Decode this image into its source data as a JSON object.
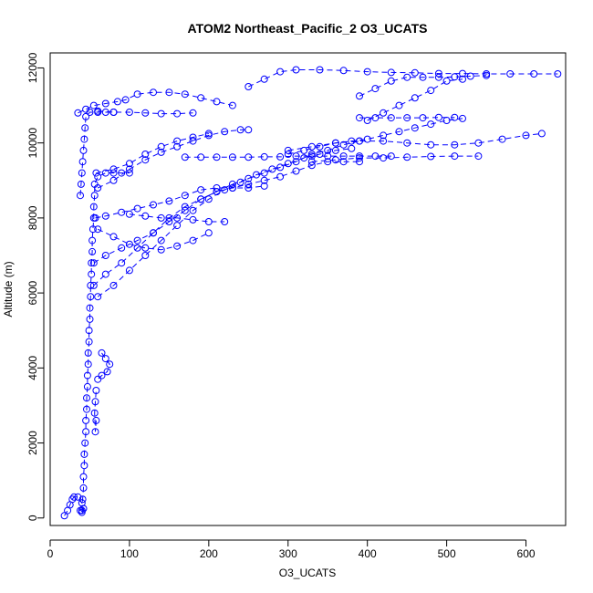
{
  "chart_data": {
    "type": "scatter",
    "title": "ATOM2 Northeast_Pacific_2 O3_UCATS",
    "xlabel": "O3_UCATS",
    "ylabel": "Altitude (m)",
    "xlim": [
      0,
      650
    ],
    "ylim": [
      -200,
      12400
    ],
    "xticks": [
      "0",
      "100",
      "200",
      "300",
      "400",
      "500",
      "600"
    ],
    "yticks": [
      "0",
      "2000",
      "4000",
      "6000",
      "8000",
      "10000",
      "12000"
    ],
    "marker": "open-circle",
    "line_style": "dashed",
    "grid": false,
    "color": "#0000ff",
    "segments": [
      [
        [
          18,
          60
        ],
        [
          22,
          200
        ],
        [
          25,
          350
        ],
        [
          28,
          500
        ],
        [
          30,
          560
        ],
        [
          35,
          560
        ],
        [
          40,
          400
        ],
        [
          42,
          250
        ],
        [
          40,
          150
        ],
        [
          38,
          200
        ]
      ],
      [
        [
          40,
          200
        ],
        [
          41,
          500
        ],
        [
          42,
          800
        ],
        [
          42,
          1100
        ],
        [
          43,
          1400
        ],
        [
          43,
          1700
        ],
        [
          44,
          2000
        ],
        [
          45,
          2300
        ],
        [
          45,
          2600
        ],
        [
          46,
          2900
        ],
        [
          46,
          3200
        ],
        [
          47,
          3500
        ],
        [
          47,
          3800
        ],
        [
          48,
          4100
        ],
        [
          48,
          4400
        ],
        [
          49,
          4700
        ],
        [
          49,
          5000
        ],
        [
          50,
          5300
        ],
        [
          50,
          5600
        ],
        [
          51,
          5900
        ],
        [
          51,
          6200
        ],
        [
          52,
          6500
        ],
        [
          52,
          6800
        ],
        [
          53,
          7100
        ],
        [
          53,
          7400
        ],
        [
          54,
          7700
        ],
        [
          55,
          8000
        ],
        [
          55,
          8300
        ],
        [
          56,
          8600
        ],
        [
          56,
          8900
        ],
        [
          60,
          9100
        ],
        [
          70,
          9200
        ],
        [
          80,
          9200
        ],
        [
          90,
          9200
        ],
        [
          100,
          9200
        ]
      ],
      [
        [
          38,
          8600
        ],
        [
          39,
          8900
        ],
        [
          40,
          9200
        ],
        [
          41,
          9500
        ],
        [
          42,
          9800
        ],
        [
          43,
          10100
        ],
        [
          44,
          10400
        ],
        [
          45,
          10700
        ],
        [
          50,
          10820
        ],
        [
          60,
          10820
        ],
        [
          70,
          10820
        ],
        [
          80,
          10820
        ]
      ],
      [
        [
          35,
          10800
        ],
        [
          45,
          10900
        ],
        [
          55,
          11000
        ],
        [
          70,
          11050
        ],
        [
          85,
          11100
        ],
        [
          95,
          11150
        ],
        [
          110,
          11300
        ],
        [
          130,
          11350
        ],
        [
          150,
          11350
        ],
        [
          170,
          11300
        ],
        [
          190,
          11200
        ],
        [
          210,
          11100
        ],
        [
          230,
          11000
        ]
      ],
      [
        [
          60,
          10850
        ],
        [
          80,
          10820
        ],
        [
          100,
          10820
        ],
        [
          120,
          10800
        ],
        [
          140,
          10780
        ],
        [
          160,
          10780
        ],
        [
          180,
          10800
        ]
      ],
      [
        [
          57,
          8000
        ],
        [
          70,
          8050
        ],
        [
          90,
          8150
        ],
        [
          110,
          8250
        ],
        [
          130,
          8350
        ],
        [
          150,
          8450
        ],
        [
          170,
          8600
        ],
        [
          190,
          8750
        ],
        [
          210,
          8800
        ],
        [
          230,
          8800
        ],
        [
          250,
          8800
        ],
        [
          270,
          8850
        ]
      ],
      [
        [
          60,
          7700
        ],
        [
          80,
          7500
        ],
        [
          100,
          7300
        ],
        [
          120,
          7200
        ],
        [
          140,
          7150
        ],
        [
          160,
          7250
        ],
        [
          180,
          7400
        ],
        [
          200,
          7600
        ]
      ],
      [
        [
          55,
          6800
        ],
        [
          70,
          7000
        ],
        [
          90,
          7200
        ],
        [
          110,
          7400
        ],
        [
          130,
          7600
        ],
        [
          150,
          7900
        ],
        [
          170,
          8200
        ],
        [
          190,
          8500
        ],
        [
          210,
          8700
        ],
        [
          230,
          8800
        ],
        [
          250,
          8900
        ],
        [
          270,
          9000
        ],
        [
          290,
          9100
        ],
        [
          310,
          9250
        ],
        [
          330,
          9400
        ],
        [
          350,
          9500
        ],
        [
          370,
          9500
        ],
        [
          390,
          9500
        ]
      ],
      [
        [
          55,
          6200
        ],
        [
          70,
          6500
        ],
        [
          90,
          6800
        ],
        [
          110,
          7200
        ],
        [
          130,
          7600
        ],
        [
          150,
          8000
        ],
        [
          170,
          8300
        ],
        [
          190,
          8500
        ],
        [
          210,
          8700
        ],
        [
          230,
          8900
        ],
        [
          250,
          9050
        ],
        [
          270,
          9200
        ],
        [
          290,
          9350
        ],
        [
          310,
          9500
        ],
        [
          330,
          9700
        ],
        [
          350,
          9800
        ],
        [
          370,
          9950
        ],
        [
          390,
          10050
        ]
      ],
      [
        [
          60,
          5900
        ],
        [
          80,
          6200
        ],
        [
          100,
          6600
        ],
        [
          120,
          7000
        ],
        [
          140,
          7400
        ],
        [
          160,
          7800
        ],
        [
          180,
          8200
        ],
        [
          200,
          8500
        ],
        [
          220,
          8750
        ],
        [
          240,
          8950
        ],
        [
          260,
          9150
        ],
        [
          280,
          9300
        ],
        [
          300,
          9450
        ],
        [
          320,
          9600
        ],
        [
          340,
          9700
        ],
        [
          360,
          9800
        ],
        [
          380,
          9850
        ]
      ],
      [
        [
          60,
          8800
        ],
        [
          80,
          9000
        ],
        [
          100,
          9300
        ],
        [
          120,
          9550
        ],
        [
          140,
          9750
        ],
        [
          160,
          9900
        ],
        [
          180,
          10050
        ],
        [
          200,
          10200
        ],
        [
          220,
          10300
        ],
        [
          240,
          10350
        ],
        [
          250,
          10350
        ]
      ],
      [
        [
          170,
          9620
        ],
        [
          190,
          9620
        ],
        [
          210,
          9620
        ],
        [
          230,
          9620
        ],
        [
          250,
          9620
        ],
        [
          270,
          9630
        ],
        [
          290,
          9630
        ],
        [
          310,
          9650
        ],
        [
          330,
          9650
        ],
        [
          350,
          9650
        ],
        [
          370,
          9650
        ],
        [
          390,
          9650
        ],
        [
          410,
          9650
        ],
        [
          430,
          9650
        ]
      ],
      [
        [
          300,
          9700
        ],
        [
          320,
          9800
        ],
        [
          340,
          9900
        ],
        [
          360,
          10000
        ],
        [
          380,
          10050
        ],
        [
          400,
          10100
        ],
        [
          420,
          10200
        ],
        [
          440,
          10300
        ],
        [
          460,
          10400
        ],
        [
          480,
          10500
        ],
        [
          500,
          10600
        ],
        [
          520,
          10650
        ]
      ],
      [
        [
          390,
          10670
        ],
        [
          410,
          10670
        ],
        [
          430,
          10670
        ],
        [
          450,
          10670
        ],
        [
          470,
          10670
        ],
        [
          490,
          10680
        ],
        [
          510,
          10680
        ]
      ],
      [
        [
          300,
          9800
        ],
        [
          330,
          9900
        ],
        [
          360,
          10000
        ],
        [
          390,
          10050
        ],
        [
          420,
          10050
        ],
        [
          450,
          10000
        ],
        [
          480,
          9950
        ],
        [
          510,
          9950
        ],
        [
          540,
          10000
        ],
        [
          570,
          10100
        ],
        [
          600,
          10200
        ],
        [
          620,
          10250
        ]
      ],
      [
        [
          330,
          9500
        ],
        [
          360,
          9550
        ],
        [
          390,
          9600
        ],
        [
          420,
          9600
        ],
        [
          450,
          9620
        ],
        [
          480,
          9640
        ],
        [
          510,
          9650
        ],
        [
          540,
          9650
        ]
      ],
      [
        [
          250,
          11500
        ],
        [
          270,
          11700
        ],
        [
          290,
          11900
        ],
        [
          310,
          11950
        ],
        [
          340,
          11950
        ],
        [
          370,
          11930
        ],
        [
          400,
          11900
        ],
        [
          430,
          11880
        ],
        [
          460,
          11870
        ],
        [
          490,
          11850
        ],
        [
          520,
          11850
        ],
        [
          550,
          11840
        ],
        [
          580,
          11840
        ],
        [
          610,
          11840
        ],
        [
          640,
          11840
        ]
      ],
      [
        [
          390,
          11250
        ],
        [
          410,
          11450
        ],
        [
          430,
          11650
        ],
        [
          450,
          11750
        ],
        [
          470,
          11750
        ],
        [
          490,
          11750
        ],
        [
          510,
          11760
        ],
        [
          530,
          11780
        ],
        [
          550,
          11800
        ]
      ],
      [
        [
          400,
          10600
        ],
        [
          420,
          10800
        ],
        [
          440,
          11000
        ],
        [
          460,
          11200
        ],
        [
          480,
          11400
        ],
        [
          500,
          11650
        ],
        [
          520,
          11700
        ]
      ],
      [
        [
          58,
          9200
        ],
        [
          80,
          9300
        ],
        [
          100,
          9450
        ],
        [
          120,
          9700
        ],
        [
          140,
          9900
        ],
        [
          160,
          10050
        ],
        [
          180,
          10150
        ],
        [
          200,
          10250
        ]
      ],
      [
        [
          100,
          8100
        ],
        [
          120,
          8050
        ],
        [
          140,
          8000
        ],
        [
          160,
          8000
        ],
        [
          180,
          7950
        ],
        [
          200,
          7900
        ],
        [
          220,
          7900
        ]
      ],
      [
        [
          65,
          4400
        ],
        [
          70,
          4250
        ],
        [
          75,
          4100
        ],
        [
          72,
          3900
        ],
        [
          65,
          3800
        ],
        [
          60,
          3700
        ]
      ],
      [
        [
          58,
          2600
        ],
        [
          57,
          2300
        ],
        [
          56,
          2800
        ],
        [
          57,
          3100
        ],
        [
          58,
          3400
        ]
      ]
    ]
  }
}
